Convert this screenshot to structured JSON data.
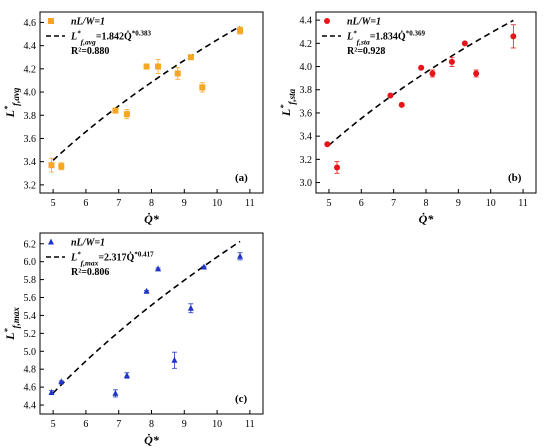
{
  "chart_data": [
    {
      "type": "scatter",
      "id": "a",
      "panel_label": "(a)",
      "xlabel": "Q̇*",
      "ylabel": "L*f,avg",
      "xlim": [
        4.6,
        11.4
      ],
      "ylim": [
        3.13,
        4.69
      ],
      "xticks": [
        5,
        6,
        7,
        8,
        9,
        10,
        11
      ],
      "yticks": [
        3.2,
        3.4,
        3.6,
        3.8,
        4.0,
        4.2,
        4.4,
        4.6
      ],
      "yfmt": 1,
      "marker": "square",
      "color": "#f5a623",
      "legend": {
        "series_label": "nL/W=1",
        "fit_base": "L*f,avg",
        "fit_rest": "=1.842Q̇*0.383",
        "r2": "R²=0.880"
      },
      "points": [
        {
          "x": 4.95,
          "y": 3.37,
          "err": 0.06
        },
        {
          "x": 5.25,
          "y": 3.36,
          "err": 0.03
        },
        {
          "x": 6.9,
          "y": 3.84,
          "err": 0.02
        },
        {
          "x": 7.25,
          "y": 3.81,
          "err": 0.04
        },
        {
          "x": 7.85,
          "y": 4.22,
          "err": 0.02
        },
        {
          "x": 8.2,
          "y": 4.22,
          "err": 0.06
        },
        {
          "x": 8.8,
          "y": 4.16,
          "err": 0.05
        },
        {
          "x": 9.2,
          "y": 4.3,
          "err": 0.02
        },
        {
          "x": 9.55,
          "y": 4.04,
          "err": 0.04
        },
        {
          "x": 10.7,
          "y": 4.53,
          "err": 0.03
        }
      ],
      "fit": {
        "a": 1.842,
        "b": 0.383,
        "x0": 5.0,
        "x1": 10.7
      }
    },
    {
      "type": "scatter",
      "id": "b",
      "panel_label": "(b)",
      "xlabel": "Q̇*",
      "ylabel": "L*f,sta",
      "xlim": [
        4.6,
        11.4
      ],
      "ylim": [
        2.91,
        4.47
      ],
      "xticks": [
        5,
        6,
        7,
        8,
        9,
        10,
        11
      ],
      "yticks": [
        3.0,
        3.2,
        3.4,
        3.6,
        3.8,
        4.0,
        4.2,
        4.4
      ],
      "yfmt": 1,
      "marker": "circle",
      "color": "#e8141a",
      "legend": {
        "series_label": "nL/W=1",
        "fit_base": "L*f,sta",
        "fit_rest": "=1.834Q̇*0.369",
        "r2": "R²=0.928"
      },
      "points": [
        {
          "x": 4.95,
          "y": 3.33,
          "err": 0.01
        },
        {
          "x": 5.25,
          "y": 3.13,
          "err": 0.05
        },
        {
          "x": 6.9,
          "y": 3.75,
          "err": 0.01
        },
        {
          "x": 7.25,
          "y": 3.67,
          "err": 0.01
        },
        {
          "x": 7.85,
          "y": 3.99,
          "err": 0.01
        },
        {
          "x": 8.2,
          "y": 3.94,
          "err": 0.03
        },
        {
          "x": 8.8,
          "y": 4.04,
          "err": 0.04
        },
        {
          "x": 9.2,
          "y": 4.2,
          "err": 0.01
        },
        {
          "x": 9.55,
          "y": 3.94,
          "err": 0.03
        },
        {
          "x": 10.7,
          "y": 4.26,
          "err": 0.1
        }
      ],
      "fit": {
        "a": 1.834,
        "b": 0.369,
        "x0": 5.0,
        "x1": 10.7
      }
    },
    {
      "type": "scatter",
      "id": "c",
      "panel_label": "(c)",
      "xlabel": "Q̇*",
      "ylabel": "L*f,max",
      "xlim": [
        4.6,
        11.4
      ],
      "ylim": [
        4.3,
        6.32
      ],
      "xticks": [
        5,
        6,
        7,
        8,
        9,
        10,
        11
      ],
      "yticks": [
        4.4,
        4.6,
        4.8,
        5.0,
        5.2,
        5.4,
        5.6,
        5.8,
        6.0,
        6.2
      ],
      "yfmt": 1,
      "marker": "triangle",
      "color": "#1f35c9",
      "legend": {
        "series_label": "nL/W=1",
        "fit_base": "L*f,max",
        "fit_rest": "=2.317Q̇*0.417",
        "r2": "R²=0.806"
      },
      "points": [
        {
          "x": 4.95,
          "y": 4.54,
          "err": 0.02
        },
        {
          "x": 5.25,
          "y": 4.66,
          "err": 0.01
        },
        {
          "x": 6.9,
          "y": 4.53,
          "err": 0.04
        },
        {
          "x": 7.25,
          "y": 4.73,
          "err": 0.03
        },
        {
          "x": 7.85,
          "y": 5.67,
          "err": 0.01
        },
        {
          "x": 8.2,
          "y": 5.92,
          "err": 0.01
        },
        {
          "x": 8.7,
          "y": 4.9,
          "err": 0.09
        },
        {
          "x": 9.2,
          "y": 5.48,
          "err": 0.05
        },
        {
          "x": 9.6,
          "y": 5.94,
          "err": 0.01
        },
        {
          "x": 10.7,
          "y": 6.06,
          "err": 0.04
        }
      ],
      "fit": {
        "a": 2.317,
        "b": 0.417,
        "x0": 5.0,
        "x1": 10.7
      }
    }
  ]
}
